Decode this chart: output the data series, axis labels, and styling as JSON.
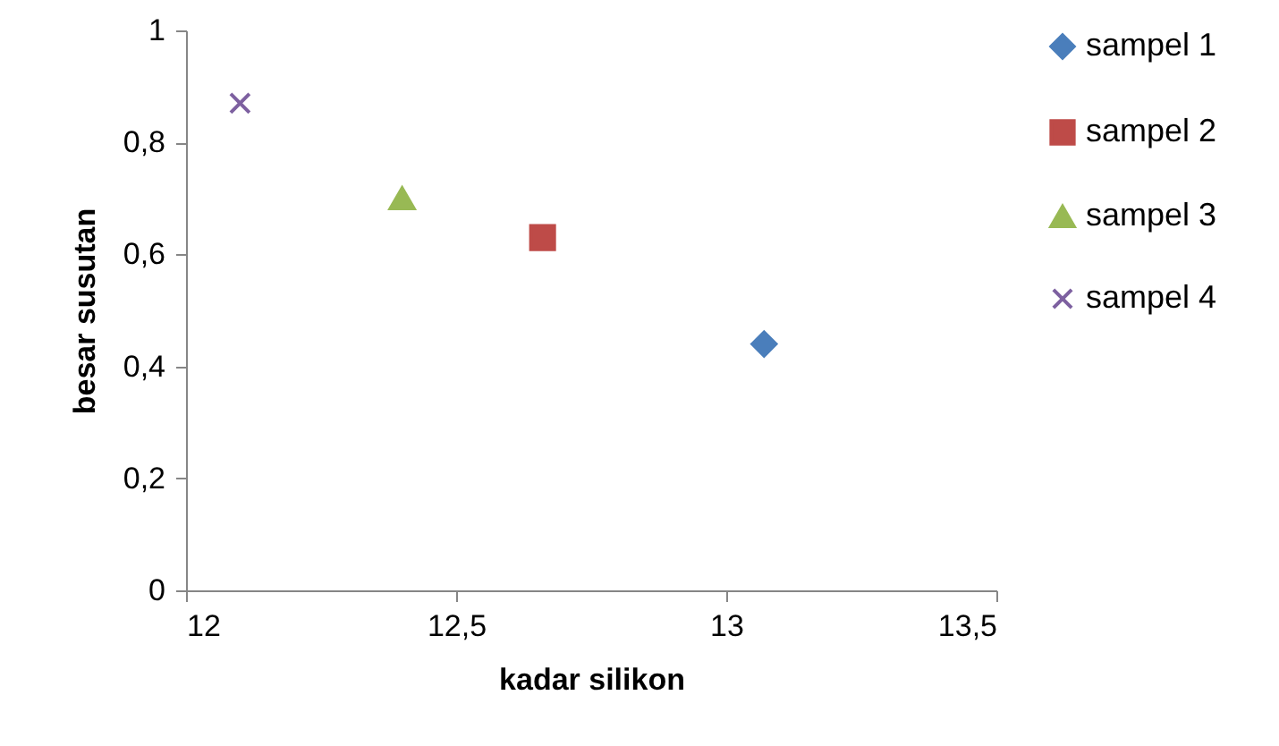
{
  "chart_data": {
    "type": "scatter",
    "xlabel": "kadar silikon",
    "ylabel": "besar susutan",
    "xlim": [
      12,
      13.5
    ],
    "ylim": [
      0,
      1
    ],
    "xticks": [
      12,
      {
        "value": 12.5,
        "label": "12,5"
      },
      13,
      {
        "value": 13.5,
        "label": "13,5"
      }
    ],
    "yticks": [
      0,
      {
        "value": 0.2,
        "label": "0,2"
      },
      {
        "value": 0.4,
        "label": "0,4"
      },
      {
        "value": 0.6,
        "label": "0,6"
      },
      {
        "value": 0.8,
        "label": "0,8"
      },
      1
    ],
    "legend": "right",
    "grid": false,
    "series": [
      {
        "name": "sampel 1",
        "color": "#4a7ebb",
        "marker": "diamond",
        "x": [
          13.07
        ],
        "values": [
          0.44
        ]
      },
      {
        "name": "sampel 2",
        "color": "#be4b48",
        "marker": "square",
        "x": [
          12.66
        ],
        "values": [
          0.63
        ]
      },
      {
        "name": "sampel 3",
        "color": "#98b954",
        "marker": "triangle",
        "x": [
          12.4
        ],
        "values": [
          0.7
        ]
      },
      {
        "name": "sampel 4",
        "color": "#7d60a0",
        "marker": "cross",
        "x": [
          12.1
        ],
        "values": [
          0.87
        ]
      }
    ]
  }
}
